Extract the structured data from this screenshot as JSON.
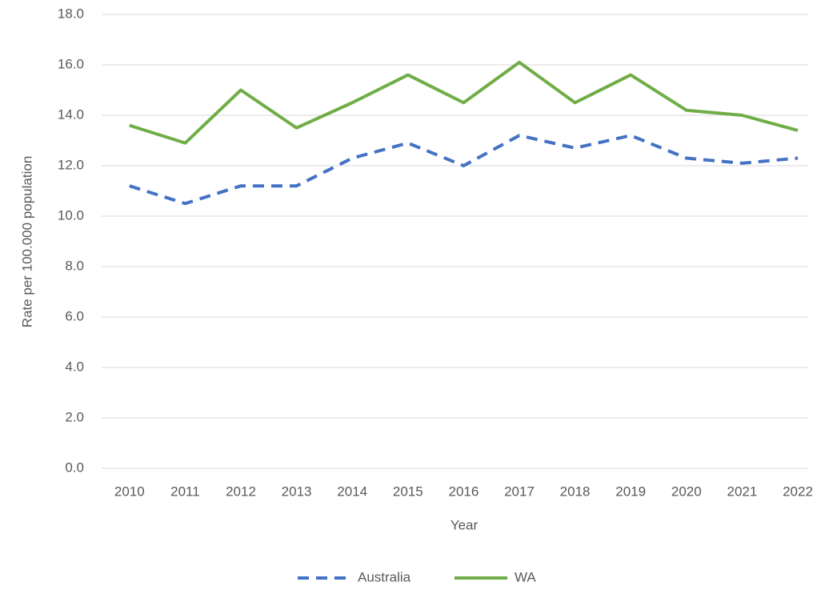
{
  "chart_data": {
    "type": "line",
    "x_label": "Year",
    "y_label": "Rate per 100.000 population",
    "categories": [
      "2010",
      "2011",
      "2012",
      "2013",
      "2014",
      "2015",
      "2016",
      "2017",
      "2018",
      "2019",
      "2020",
      "2021",
      "2022"
    ],
    "series": [
      {
        "name": "Australia",
        "color": "#4472c4",
        "dashed": true,
        "values": [
          11.2,
          10.5,
          11.2,
          11.2,
          12.3,
          12.9,
          12.0,
          13.2,
          12.7,
          13.2,
          12.3,
          12.1,
          12.3
        ]
      },
      {
        "name": "WA",
        "color": "#70ad47",
        "dashed": false,
        "values": [
          13.6,
          12.9,
          15.0,
          13.5,
          14.5,
          15.6,
          14.5,
          16.1,
          14.5,
          15.6,
          14.2,
          14.0,
          13.4
        ]
      }
    ],
    "ylim": [
      0,
      18
    ],
    "yticks": [
      {
        "value": 0,
        "label": "0.0"
      },
      {
        "value": 2,
        "label": "2.0"
      },
      {
        "value": 4,
        "label": "4.0"
      },
      {
        "value": 6,
        "label": "6.0"
      },
      {
        "value": 8,
        "label": "8.0"
      },
      {
        "value": 10,
        "label": "10.0"
      },
      {
        "value": 12,
        "label": "12.0"
      },
      {
        "value": 14,
        "label": "14.0"
      },
      {
        "value": 16,
        "label": "16.0"
      },
      {
        "value": 18,
        "label": "18.0"
      }
    ],
    "grid": true,
    "legend": "bottom"
  }
}
